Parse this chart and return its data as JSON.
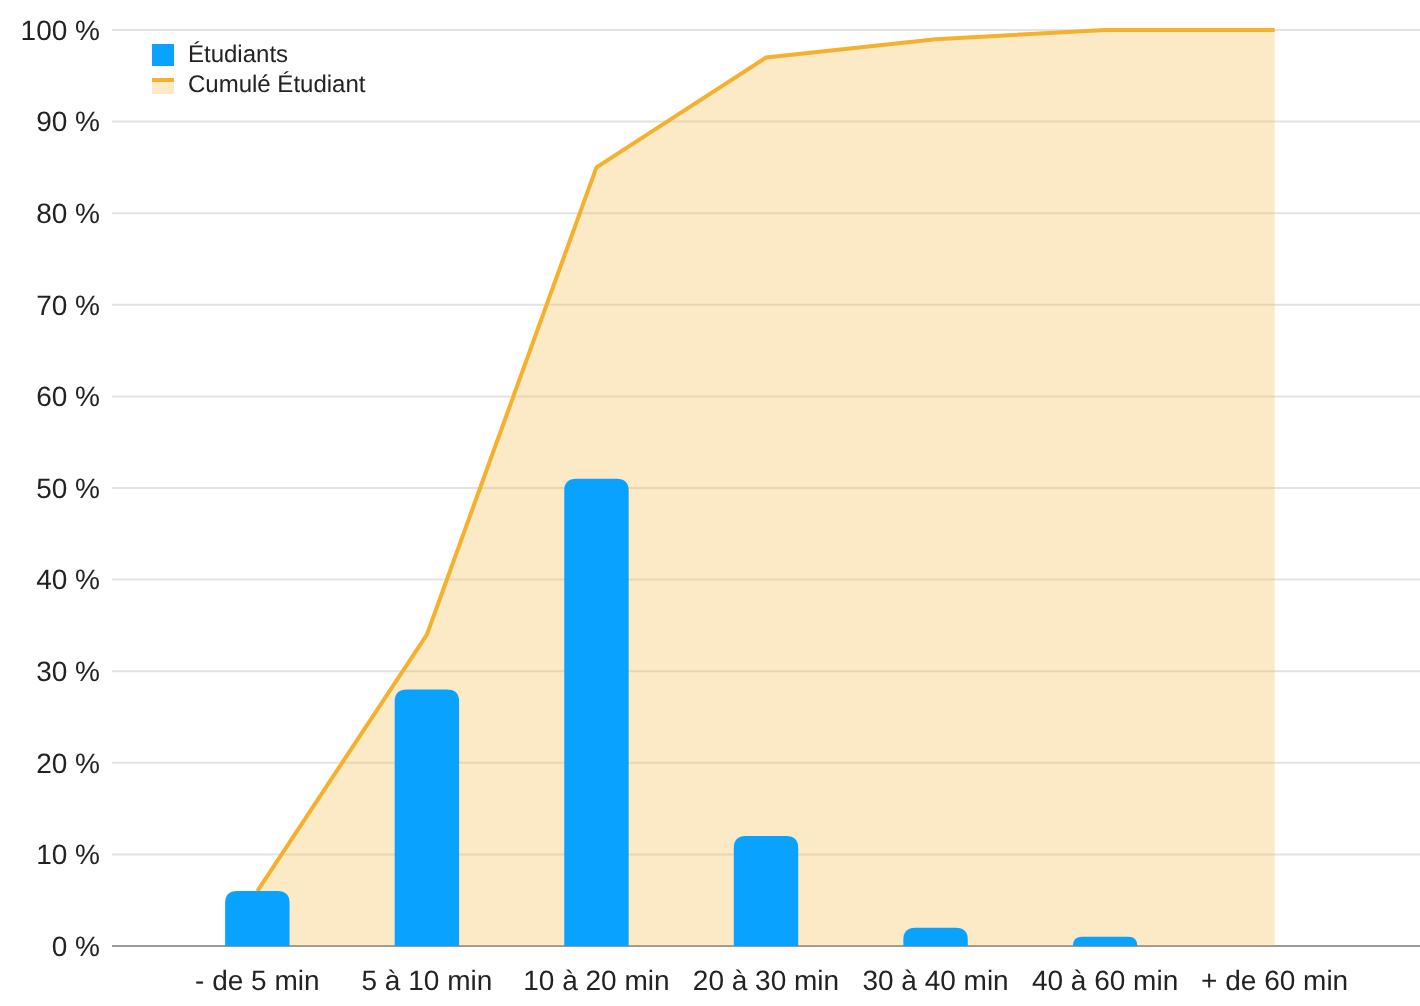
{
  "chart_data": {
    "type": "bar",
    "categories": [
      "- de 5 min",
      "5 à 10 min",
      "10 à 20 min",
      "20 à 30 min",
      "30 à 40 min",
      "40 à 60 min",
      "+ de 60 min"
    ],
    "series": [
      {
        "name": "Étudiants",
        "color": "#0aa2ff",
        "values": [
          6,
          28,
          51,
          12,
          2,
          1,
          0
        ]
      },
      {
        "name": "Cumulé Étudiant",
        "type": "area",
        "color": "#f5b02e",
        "values": [
          6,
          34,
          85,
          97,
          99,
          100,
          100
        ]
      }
    ],
    "ylim": [
      0,
      100
    ],
    "yticks": [
      {
        "value": 0,
        "label": "0 %"
      },
      {
        "value": 10,
        "label": "10 %"
      },
      {
        "value": 20,
        "label": "20 %"
      },
      {
        "value": 30,
        "label": "30 %"
      },
      {
        "value": 40,
        "label": "40 %"
      },
      {
        "value": 50,
        "label": "50 %"
      },
      {
        "value": 60,
        "label": "60 %"
      },
      {
        "value": 70,
        "label": "70 %"
      },
      {
        "value": 80,
        "label": "80 %"
      },
      {
        "value": 90,
        "label": "90 %"
      },
      {
        "value": 100,
        "label": "100 %"
      }
    ],
    "grid": "y",
    "legend": "top left"
  }
}
